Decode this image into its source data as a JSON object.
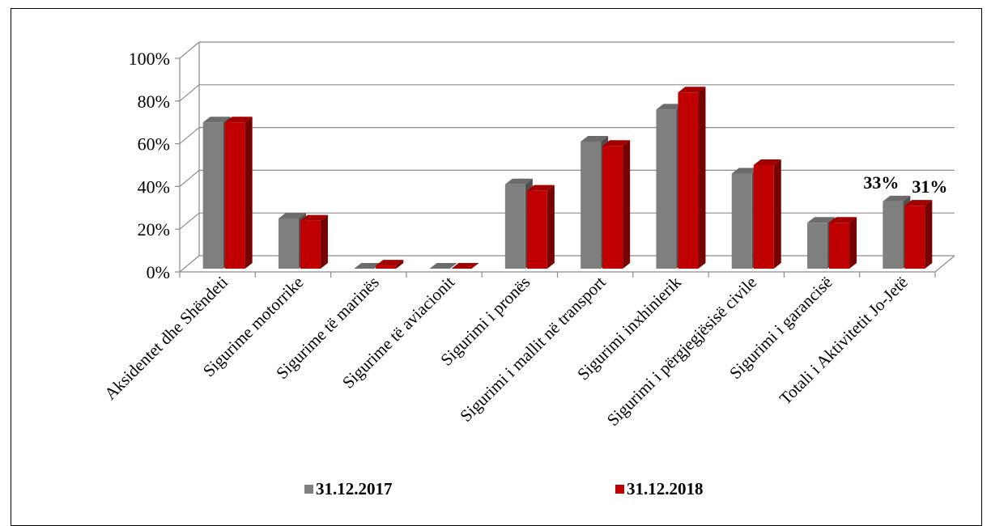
{
  "chart_data": {
    "type": "bar",
    "categories": [
      "Aksidentet dhe Shëndeti",
      "Sigurime motorrike",
      "Sigurime të marinës",
      "Sigurime të aviacionit",
      "Sigurimi i pronës",
      "Sigurimi i mallit në transport",
      "Sigurimi inxhinierik",
      "Sigurimi i përgjegjësisë civile",
      "Sigurimi i garancisë",
      "Totali i Aktivitetit Jo-Jetë"
    ],
    "series": [
      {
        "name": "31.12.2017",
        "color": "#7f7f7f",
        "values": [
          70,
          25,
          0,
          0,
          41,
          61,
          76,
          46,
          23,
          33
        ]
      },
      {
        "name": "31.12.2018",
        "color": "#c00000",
        "values": [
          70,
          24,
          3,
          0,
          38,
          59,
          84,
          50,
          23,
          31
        ]
      }
    ],
    "y_ticks": [
      "0%",
      "20%",
      "40%",
      "60%",
      "80%",
      "100%"
    ],
    "ylim": [
      0,
      100
    ],
    "grid": true,
    "legend_position": "bottom",
    "data_labels": [
      {
        "series": 0,
        "category": 9,
        "text": "33%"
      },
      {
        "series": 1,
        "category": 9,
        "text": "31%"
      }
    ]
  }
}
